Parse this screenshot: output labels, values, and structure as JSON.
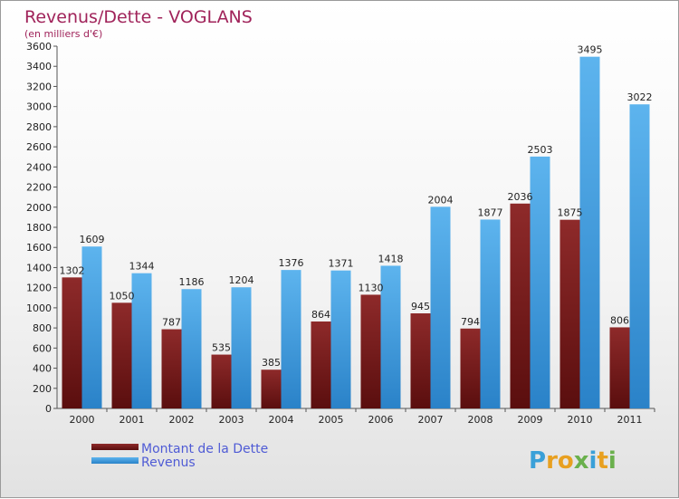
{
  "chart_data": {
    "type": "bar",
    "title": "Revenus/Dette - VOGLANS",
    "subtitle": "(en milliers d'€)",
    "categories": [
      "2000",
      "2001",
      "2002",
      "2003",
      "2004",
      "2005",
      "2006",
      "2007",
      "2008",
      "2009",
      "2010",
      "2011"
    ],
    "series": [
      {
        "name": "Montant de la Dette",
        "values": [
          1302,
          1050,
          787,
          535,
          385,
          864,
          1130,
          945,
          794,
          2036,
          1875,
          806
        ],
        "color": "#7a1a1a"
      },
      {
        "name": "Revenus",
        "values": [
          1609,
          1344,
          1186,
          1204,
          1376,
          1371,
          1418,
          2004,
          1877,
          2503,
          3495,
          3022
        ],
        "color": "#3d9be0"
      }
    ],
    "data_labels": [
      [
        "1302",
        "1050",
        "787",
        "535",
        "385",
        "864",
        "1130",
        "945",
        "794",
        "2036",
        "1875",
        "806"
      ],
      [
        "1609",
        "1344",
        "1186",
        "1204",
        "1376",
        "1371",
        "1418",
        "2004",
        "1877",
        "2503",
        "3495",
        "3022"
      ]
    ],
    "ylim": [
      0,
      3600
    ],
    "yticks": [
      0,
      200,
      400,
      600,
      800,
      1000,
      1200,
      1400,
      1600,
      1800,
      2000,
      2200,
      2400,
      2600,
      2800,
      3000,
      3200,
      3400,
      3600
    ],
    "grid": false,
    "legend_position": "bottom-left"
  },
  "logo": {
    "text": "Proxiti",
    "letter_colors": [
      "#3aa0d8",
      "#e8a020",
      "#e8a020",
      "#6ab04c",
      "#3aa0d8",
      "#e8a020",
      "#6ab04c"
    ]
  }
}
